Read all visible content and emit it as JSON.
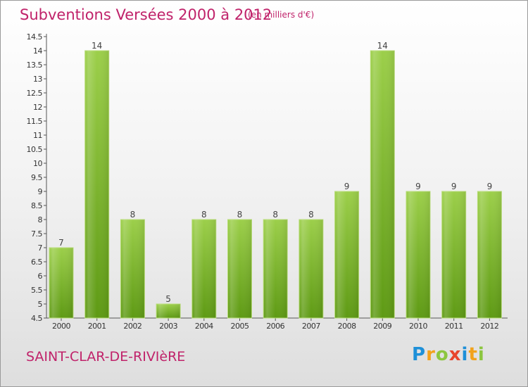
{
  "header": {
    "title": "Subventions Versées 2000 à 2012",
    "subtitle": "(en milliers d'€)"
  },
  "footer": {
    "commune": "SAINT-CLAR-DE-RIVIèRE",
    "logo": {
      "p": "P",
      "r": "r",
      "o": "o",
      "x": "x",
      "i1": "i",
      "t": "t",
      "i2": "i"
    }
  },
  "colors": {
    "bar_top": "#9ccf4a",
    "bar_bottom": "#5e9a14",
    "text_accent": "#c0226a"
  },
  "chart_data": {
    "type": "bar",
    "title": "Subventions Versées 2000 à 2012",
    "subtitle": "(en milliers d'€)",
    "categories": [
      "2000",
      "2001",
      "2002",
      "2003",
      "2004",
      "2005",
      "2006",
      "2007",
      "2008",
      "2009",
      "2010",
      "2011",
      "2012"
    ],
    "values": [
      7,
      14,
      8,
      5,
      8,
      8,
      8,
      8,
      9,
      14,
      9,
      9,
      9
    ],
    "ylim": [
      4.5,
      14.5
    ],
    "yticks": [
      "4.5",
      "5",
      "5.5",
      "6",
      "6.5",
      "7",
      "7.5",
      "8",
      "8.5",
      "9",
      "9.5",
      "10",
      "10.5",
      "11",
      "11.5",
      "12",
      "12.5",
      "13",
      "13.5",
      "14",
      "14.5"
    ],
    "grid": false,
    "xlabel": "",
    "ylabel": ""
  }
}
